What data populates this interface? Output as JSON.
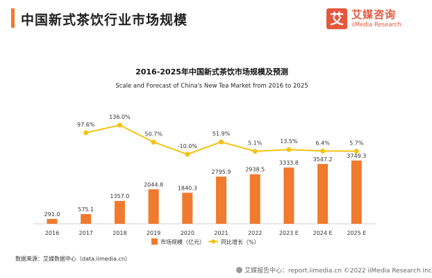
{
  "page_title": "中国新式茶饮行业市场规模",
  "logo": {
    "glyph": "艾",
    "cn": "艾媒咨询",
    "en": "iiMedia Research"
  },
  "source_text": "数据来源：艾媒数据中心（data.iimedia.cn）",
  "footer_text": "艾媒报告中心：report.iimedia.cn ©2022 iiMedia Research Inc",
  "colors": {
    "bar": "#f07a2e",
    "line": "#f5c211",
    "accent": "#e4573b"
  },
  "chart_data": {
    "type": "bar",
    "title": "2016-2025年中国新式茶饮市场规模及预测",
    "subtitle": "Scale and Forecast of China's New Tea Market from 2016 to 2025",
    "categories": [
      "2016",
      "2017",
      "2018",
      "2019",
      "2020",
      "2021",
      "2022",
      "2023 E",
      "2024 E",
      "2025 E"
    ],
    "series": [
      {
        "name": "市场规模（亿元）",
        "type": "bar",
        "values": [
          291.0,
          575.1,
          1357.0,
          2044.8,
          1840.3,
          2795.9,
          2938.5,
          3333.8,
          3547.2,
          3749.3
        ],
        "labels": [
          "291.0",
          "575.1",
          "1357.0",
          "2044.8",
          "1840.3",
          "2795.9",
          "2938.5",
          "3333.8",
          "3547.2",
          "3749.3"
        ]
      },
      {
        "name": "同比增长（%）",
        "type": "line",
        "values": [
          null,
          97.6,
          136.0,
          50.7,
          -10.0,
          51.9,
          5.1,
          13.5,
          6.4,
          5.7
        ],
        "labels": [
          null,
          "97.6%",
          "136.0%",
          "50.7%",
          "-10.0%",
          "51.9%",
          "5.1%",
          "13.5%",
          "6.4%",
          "5.7%"
        ]
      }
    ],
    "legend_position": "bottom",
    "grid": false
  }
}
